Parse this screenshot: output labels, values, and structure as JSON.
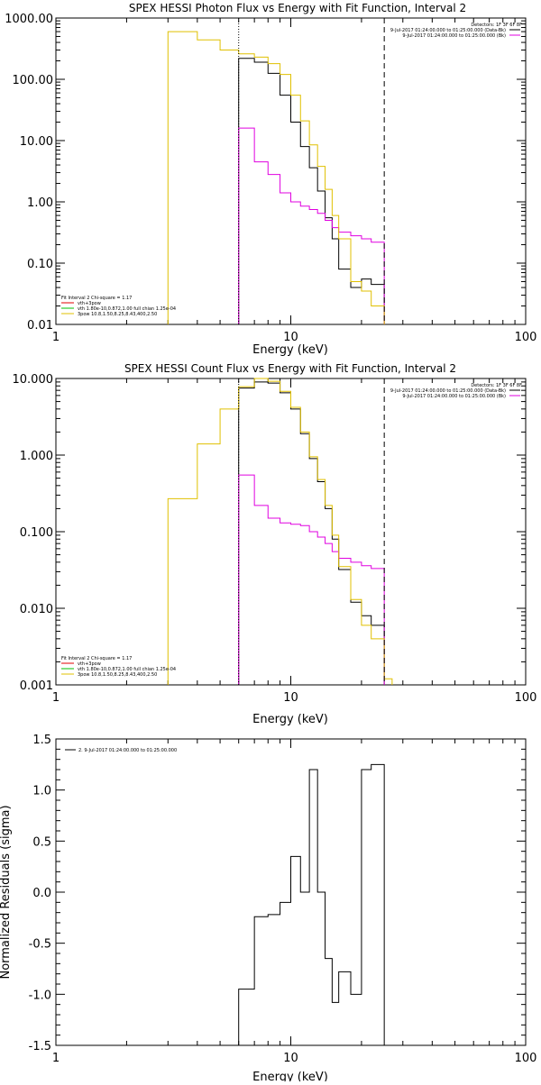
{
  "chart_data": [
    {
      "type": "line",
      "title": "SPEX HESSI Photon Flux vs Energy with Fit Function, Interval 2",
      "xlabel": "Energy (keV)",
      "ylabel": "",
      "xscale": "log",
      "yscale": "log",
      "xlim": [
        1,
        100
      ],
      "ylim": [
        0.01,
        1000
      ],
      "xticks": [
        "1",
        "10",
        "100"
      ],
      "yticks": [
        "0.01",
        "0.10",
        "1.00",
        "10.00",
        "100.00",
        "1000.00"
      ],
      "legend_right": [
        "Detectors: 1F 3F 6F 8F",
        "9-Jul-2017 01:24:00.000 to 01:25:00.000 (Data-Bk)",
        "9-Jul-2017 01:24:00.000 to 01:25:00.000 (Bk)"
      ],
      "legend_left": [
        "Fit Interval 2   Chi-square = 1.17",
        "vth+3pow",
        "vth 1.80e-10,0.872,1.00  full chian 1.25e-04",
        "3pow 10.8,1.50,8.25,8.43,400,2.50"
      ],
      "vlines": [
        {
          "x": 6.0,
          "style": "dotted"
        },
        {
          "x": 25.0,
          "style": "dashed"
        }
      ],
      "series": [
        {
          "name": "Data-Bk",
          "color": "#000000",
          "edges": [
            6.0,
            7.0,
            8.0,
            9.0,
            10.0,
            11.0,
            12.0,
            13.0,
            14.0,
            15.0,
            16.0,
            18.0,
            20.0,
            22.0,
            25.0
          ],
          "values": [
            220,
            190,
            125,
            55,
            20,
            8.0,
            3.6,
            1.5,
            0.55,
            0.25,
            0.08,
            0.04,
            0.055,
            0.045
          ]
        },
        {
          "name": "Bk",
          "color": "#e000e0",
          "edges": [
            6.0,
            7.0,
            8.0,
            9.0,
            10.0,
            11.0,
            12.0,
            13.0,
            14.0,
            15.0,
            16.0,
            18.0,
            20.0,
            22.0,
            25.0
          ],
          "values": [
            16,
            4.5,
            2.8,
            1.4,
            1.0,
            0.85,
            0.75,
            0.65,
            0.5,
            0.38,
            0.32,
            0.28,
            0.25,
            0.22
          ]
        },
        {
          "name": "vth+3pow",
          "color": "#e0c000",
          "edges": [
            3.0,
            4.0,
            5.0,
            6.0,
            7.0,
            8.0,
            9.0,
            10.0,
            11.0,
            12.0,
            13.0,
            14.0,
            15.0,
            16.0,
            18.0,
            20.0,
            22.0,
            25.0
          ],
          "values": [
            600,
            440,
            300,
            260,
            230,
            180,
            120,
            55,
            21,
            8.5,
            3.8,
            1.6,
            0.6,
            0.25,
            0.05,
            0.035,
            0.02
          ]
        }
      ]
    },
    {
      "type": "line",
      "title": "SPEX HESSI Count Flux vs Energy with Fit Function, Interval 2",
      "xlabel": "Energy (keV)",
      "ylabel": "",
      "xscale": "log",
      "yscale": "log",
      "xlim": [
        1,
        100
      ],
      "ylim": [
        0.001,
        10
      ],
      "xticks": [
        "1",
        "10",
        "100"
      ],
      "yticks": [
        "0.001",
        "0.010",
        "0.100",
        "1.000",
        "10.000"
      ],
      "legend_right": [
        "Detectors: 1F 3F 6F 8F",
        "9-Jul-2017 01:24:00.000 to 01:25:00.000 (Data-Bk)",
        "9-Jul-2017 01:24:00.000 to 01:25:00.000 (Bk)"
      ],
      "legend_left": [
        "Fit Interval 2   Chi-square = 1.17",
        "vth+3pow",
        "vth 1.80e-10,0.872,1.00  full chian 1.25e-04",
        "3pow 10.8,1.50,8.25,8.43,400,2.50"
      ],
      "vlines": [
        {
          "x": 6.0,
          "style": "dotted"
        },
        {
          "x": 25.0,
          "style": "dashed"
        }
      ],
      "series": [
        {
          "name": "Data-Bk",
          "color": "#000000",
          "edges": [
            6.0,
            7.0,
            8.0,
            9.0,
            10.0,
            11.0,
            12.0,
            13.0,
            14.0,
            15.0,
            16.0,
            18.0,
            20.0,
            22.0,
            25.0
          ],
          "values": [
            7.5,
            9.0,
            8.7,
            6.5,
            4.0,
            1.9,
            0.9,
            0.45,
            0.2,
            0.08,
            0.032,
            0.012,
            0.008,
            0.006
          ]
        },
        {
          "name": "Bk",
          "color": "#e000e0",
          "edges": [
            6.0,
            7.0,
            8.0,
            9.0,
            10.0,
            11.0,
            12.0,
            13.0,
            14.0,
            15.0,
            16.0,
            18.0,
            20.0,
            22.0,
            25.0
          ],
          "values": [
            0.55,
            0.22,
            0.15,
            0.13,
            0.125,
            0.12,
            0.1,
            0.085,
            0.07,
            0.055,
            0.045,
            0.04,
            0.036,
            0.033
          ]
        },
        {
          "name": "vth+3pow",
          "color": "#e0c000",
          "edges": [
            3.0,
            4.0,
            5.0,
            6.0,
            7.0,
            8.0,
            9.0,
            10.0,
            11.0,
            12.0,
            13.0,
            14.0,
            15.0,
            16.0,
            18.0,
            20.0,
            22.0,
            25.0,
            27.0
          ],
          "values": [
            0.27,
            1.4,
            4.0,
            7.8,
            10.0,
            9.2,
            6.8,
            4.2,
            2.0,
            0.95,
            0.48,
            0.22,
            0.09,
            0.035,
            0.013,
            0.006,
            0.004,
            0.0012
          ]
        }
      ]
    },
    {
      "type": "line",
      "title": "",
      "xlabel": "Energy (keV)",
      "ylabel": "Normalized Residuals (sigma)",
      "xscale": "log",
      "yscale": "linear",
      "xlim": [
        1,
        100
      ],
      "ylim": [
        -1.5,
        1.5
      ],
      "xticks": [
        "1",
        "10",
        "100"
      ],
      "yticks": [
        "-1.5",
        "-1.0",
        "-0.5",
        "0.0",
        "0.5",
        "1.0",
        "1.5"
      ],
      "legend_left": [
        "2.  9-Jul-2017 01:24:00.000 to 01:25:00.000"
      ],
      "series": [
        {
          "name": "",
          "color": "#000000",
          "edges": [
            6.0,
            7.0,
            8.0,
            9.0,
            10.0,
            11.0,
            12.0,
            13.0,
            14.0,
            15.0,
            16.0,
            18.0,
            20.0,
            22.0,
            25.0
          ],
          "values": [
            -0.95,
            -0.24,
            -0.22,
            -0.1,
            0.35,
            0.0,
            1.2,
            0.0,
            -0.65,
            -1.08,
            -0.78,
            -1.0,
            1.2,
            1.25
          ]
        }
      ]
    }
  ]
}
